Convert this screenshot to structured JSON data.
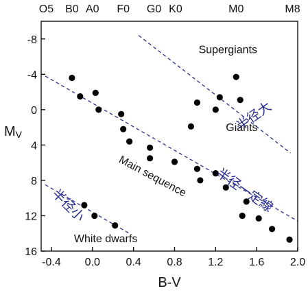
{
  "chart_data": {
    "type": "scatter",
    "title": "",
    "xlabel": "B-V",
    "ylabel": "M",
    "ylabel_subscript": "V",
    "xlim": [
      -0.5,
      2.0
    ],
    "ylim": [
      16,
      -10
    ],
    "x_ticks": [
      -0.4,
      0.0,
      0.4,
      0.8,
      1.2,
      1.6,
      2.0
    ],
    "x_tick_labels": [
      "-0.4",
      "0.0",
      "0.4",
      "0.8",
      "1.2",
      "1.6",
      "2.0"
    ],
    "y_ticks": [
      -8,
      -4,
      0,
      4,
      8,
      12,
      16
    ],
    "y_tick_labels": [
      "-8",
      "-4",
      "0",
      "4",
      "8",
      "12",
      "16"
    ],
    "spectral_types": [
      {
        "label": "O5",
        "x": -0.45
      },
      {
        "label": "B0",
        "x": -0.2
      },
      {
        "label": "A0",
        "x": 0.0
      },
      {
        "label": "F0",
        "x": 0.3
      },
      {
        "label": "G0",
        "x": 0.6
      },
      {
        "label": "K0",
        "x": 0.81
      },
      {
        "label": "M0",
        "x": 1.4
      },
      {
        "label": "M8",
        "x": 1.95
      }
    ],
    "points": [
      {
        "x": -0.2,
        "y": -3.6
      },
      {
        "x": -0.12,
        "y": -1.5
      },
      {
        "x": 0.03,
        "y": -1.9
      },
      {
        "x": 0.06,
        "y": 0.0
      },
      {
        "x": 0.28,
        "y": 0.5
      },
      {
        "x": 0.3,
        "y": 2.2
      },
      {
        "x": 0.36,
        "y": 3.6
      },
      {
        "x": 0.56,
        "y": 4.3
      },
      {
        "x": 0.56,
        "y": 5.5
      },
      {
        "x": 0.8,
        "y": 5.9
      },
      {
        "x": 1.02,
        "y": 6.7
      },
      {
        "x": 1.05,
        "y": 8.0
      },
      {
        "x": 1.2,
        "y": 7.2
      },
      {
        "x": 1.3,
        "y": 8.8
      },
      {
        "x": -0.08,
        "y": 10.8
      },
      {
        "x": 0.02,
        "y": 12.0
      },
      {
        "x": 0.22,
        "y": 13.1
      },
      {
        "x": 1.46,
        "y": 12.0
      },
      {
        "x": 1.5,
        "y": 10.4
      },
      {
        "x": 1.62,
        "y": 12.3
      },
      {
        "x": 1.75,
        "y": 13.5
      },
      {
        "x": 1.92,
        "y": 14.7
      },
      {
        "x": 0.96,
        "y": 1.9
      },
      {
        "x": 1.02,
        "y": -0.8
      },
      {
        "x": 1.2,
        "y": 0.0
      },
      {
        "x": 1.24,
        "y": -1.4
      },
      {
        "x": 1.4,
        "y": -3.7
      },
      {
        "x": 1.44,
        "y": -1.1
      }
    ],
    "guide_lines": [
      {
        "x1": -0.46,
        "y1": -3.8,
        "x2": 2.0,
        "y2": 12.6
      },
      {
        "x1": -0.46,
        "y1": 8.5,
        "x2": 0.36,
        "y2": 14.0
      },
      {
        "x1": 0.45,
        "y1": -8.4,
        "x2": 1.93,
        "y2": 4.9
      }
    ],
    "annotations": [
      {
        "text": "Supergiants",
        "x": 1.32,
        "y": -6.4,
        "anchor": "middle"
      },
      {
        "text": "Giants",
        "x": 1.3,
        "y": 2.4,
        "anchor": "start"
      },
      {
        "text": "Main sequence",
        "x": 0.25,
        "y": 5.9,
        "rotate": 28,
        "anchor": "start"
      },
      {
        "text": "White dwarfs",
        "x": -0.18,
        "y": 15.0,
        "anchor": "start"
      },
      {
        "text": "半径大",
        "x": 1.44,
        "y": 2.4,
        "rotate": -35,
        "anchor": "start",
        "style": "radius"
      },
      {
        "text": "半径一定線",
        "x": 1.2,
        "y": 7.4,
        "rotate": 35,
        "anchor": "start",
        "style": "radius"
      },
      {
        "text": "半径小",
        "x": -0.4,
        "y": 9.6,
        "rotate": 45,
        "anchor": "start",
        "style": "radius"
      }
    ],
    "grid": false,
    "colors": {
      "points": "#000000",
      "guides": "#2a2f8f",
      "radius_text": "#2a2f8f"
    }
  }
}
